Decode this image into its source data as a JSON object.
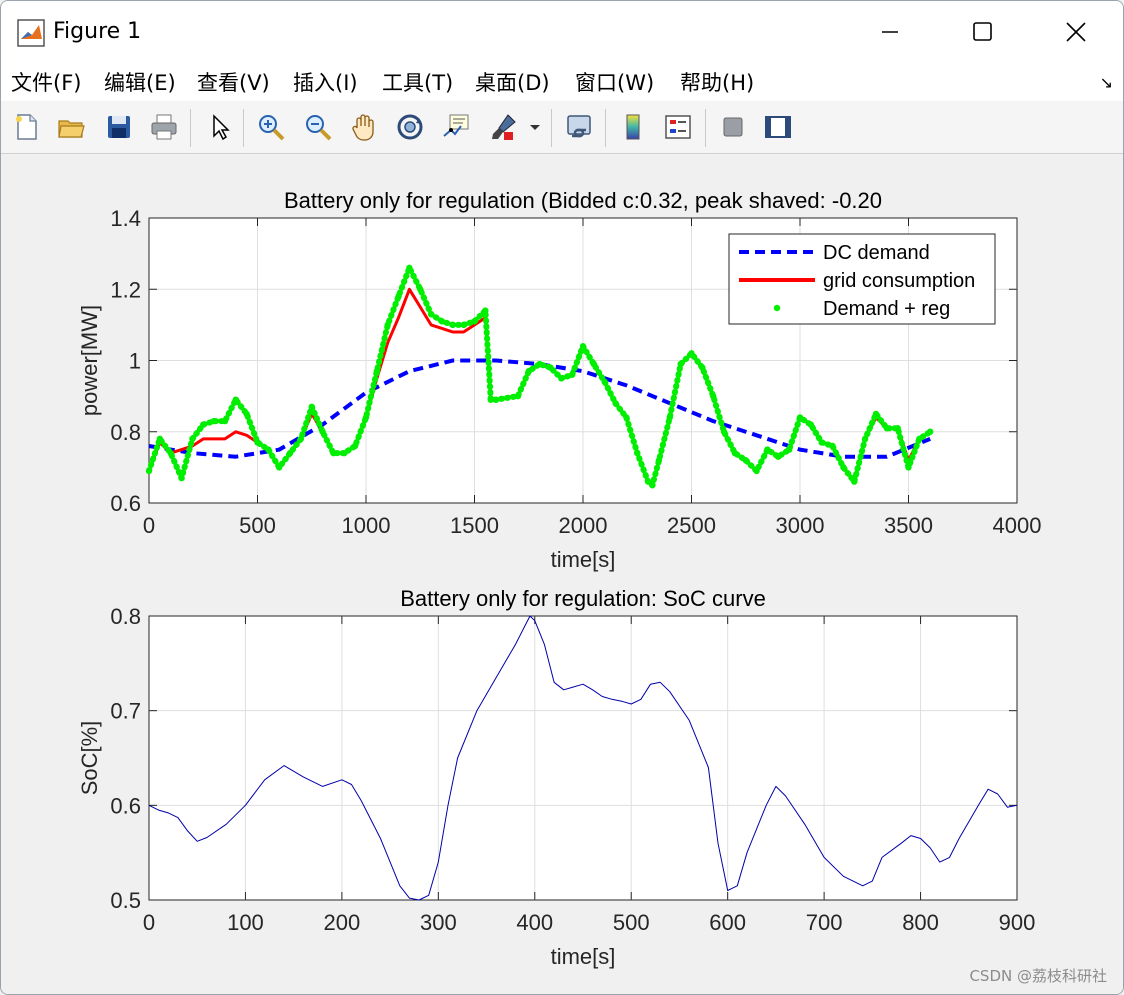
{
  "window": {
    "title": "Figure 1"
  },
  "menu": [
    {
      "id": "file",
      "label": "文件(F)"
    },
    {
      "id": "edit",
      "label": "编辑(E)"
    },
    {
      "id": "view",
      "label": "查看(V)"
    },
    {
      "id": "insert",
      "label": "插入(I)"
    },
    {
      "id": "tools",
      "label": "工具(T)"
    },
    {
      "id": "desktop",
      "label": "桌面(D)"
    },
    {
      "id": "window",
      "label": "窗口(W)"
    },
    {
      "id": "help",
      "label": "帮助(H)"
    }
  ],
  "toolbar_icons": [
    "new-file-icon",
    "open-folder-icon",
    "save-icon",
    "print-icon",
    "pointer-arrow-icon",
    "zoom-in-icon",
    "zoom-out-icon",
    "pan-hand-icon",
    "rotate-3d-icon",
    "data-cursor-icon",
    "brush-icon",
    "brush-dropdown-icon",
    "link-plot-icon",
    "colorbar-icon",
    "legend-icon",
    "hide-plot-tools-icon",
    "show-plot-tools-icon"
  ],
  "chart_data": [
    {
      "type": "line",
      "title": "Battery only for regulation (Bidded c:0.32, peak shaved: -0.20",
      "xlabel": "time[s]",
      "ylabel": "power[MW]",
      "xlim": [
        0,
        4000
      ],
      "ylim": [
        0.6,
        1.4
      ],
      "xticks": [
        0,
        500,
        1000,
        1500,
        2000,
        2500,
        3000,
        3500,
        4000
      ],
      "yticks": [
        0.6,
        0.8,
        1,
        1.2,
        1.4
      ],
      "xtick_labels": [
        "0",
        "500",
        "1000",
        "1500",
        "2000",
        "2500",
        "3000",
        "3500",
        "4000"
      ],
      "ytick_labels": [
        "0.6",
        "0.8",
        "1",
        "1.2",
        "1.4"
      ],
      "grid": true,
      "legend_position": "top-right",
      "series": [
        {
          "name": "DC demand",
          "style": "dashed",
          "color": "#0000ff",
          "x": [
            0,
            200,
            400,
            600,
            800,
            1000,
            1200,
            1400,
            1600,
            1800,
            2000,
            2200,
            2400,
            2600,
            2800,
            3000,
            3200,
            3400,
            3600
          ],
          "y": [
            0.76,
            0.74,
            0.73,
            0.75,
            0.82,
            0.91,
            0.97,
            1.0,
            1.0,
            0.99,
            0.97,
            0.93,
            0.88,
            0.83,
            0.79,
            0.75,
            0.73,
            0.73,
            0.78
          ]
        },
        {
          "name": "grid consumption",
          "style": "solid",
          "color": "#ff0000",
          "x": [
            0,
            50,
            100,
            150,
            200,
            250,
            300,
            350,
            400,
            450,
            500,
            550,
            600,
            650,
            700,
            750,
            800,
            850,
            900,
            950,
            1000,
            1050,
            1100,
            1150,
            1200,
            1250,
            1300,
            1350,
            1400,
            1450,
            1500,
            1550,
            1575,
            1600,
            1700,
            1750,
            1800,
            1850,
            1900,
            1950,
            2000,
            2050,
            2100,
            2150,
            2200,
            2250,
            2300,
            2320,
            2350,
            2400,
            2450,
            2500,
            2550,
            2600,
            2650,
            2700,
            2750,
            2800,
            2850,
            2900,
            2950,
            3000,
            3050,
            3100,
            3150,
            3200,
            3250,
            3300,
            3350,
            3400,
            3450,
            3500,
            3550,
            3600
          ],
          "y": [
            0.69,
            0.77,
            0.74,
            0.75,
            0.76,
            0.78,
            0.78,
            0.78,
            0.8,
            0.79,
            0.77,
            0.75,
            0.7,
            0.74,
            0.78,
            0.85,
            0.8,
            0.74,
            0.74,
            0.76,
            0.84,
            0.95,
            1.05,
            1.12,
            1.2,
            1.15,
            1.1,
            1.09,
            1.08,
            1.08,
            1.1,
            1.12,
            0.89,
            0.89,
            0.9,
            0.97,
            0.99,
            0.98,
            0.95,
            0.96,
            1.04,
            0.99,
            0.94,
            0.88,
            0.84,
            0.74,
            0.66,
            0.65,
            0.72,
            0.84,
            0.99,
            1.02,
            0.98,
            0.9,
            0.8,
            0.74,
            0.72,
            0.69,
            0.75,
            0.73,
            0.75,
            0.84,
            0.82,
            0.77,
            0.76,
            0.7,
            0.66,
            0.78,
            0.84,
            0.81,
            0.81,
            0.72,
            0.78,
            0.8
          ]
        },
        {
          "name": "Demand + reg",
          "style": "dots",
          "color": "#00ee00",
          "x": [
            0,
            50,
            100,
            150,
            200,
            250,
            300,
            350,
            400,
            450,
            500,
            550,
            600,
            650,
            700,
            750,
            800,
            850,
            900,
            950,
            1000,
            1050,
            1100,
            1150,
            1200,
            1250,
            1300,
            1350,
            1400,
            1450,
            1500,
            1550,
            1575,
            1600,
            1700,
            1750,
            1800,
            1850,
            1900,
            1950,
            2000,
            2050,
            2100,
            2150,
            2200,
            2250,
            2300,
            2320,
            2350,
            2400,
            2450,
            2500,
            2550,
            2600,
            2650,
            2700,
            2750,
            2800,
            2850,
            2900,
            2950,
            3000,
            3050,
            3100,
            3150,
            3200,
            3250,
            3300,
            3350,
            3400,
            3450,
            3500,
            3550,
            3600
          ],
          "y": [
            0.69,
            0.78,
            0.74,
            0.67,
            0.78,
            0.82,
            0.83,
            0.83,
            0.89,
            0.85,
            0.77,
            0.75,
            0.7,
            0.74,
            0.78,
            0.87,
            0.8,
            0.74,
            0.74,
            0.76,
            0.84,
            0.97,
            1.1,
            1.18,
            1.26,
            1.2,
            1.13,
            1.11,
            1.1,
            1.1,
            1.11,
            1.14,
            0.89,
            0.89,
            0.9,
            0.97,
            0.99,
            0.98,
            0.95,
            0.96,
            1.04,
            0.99,
            0.94,
            0.88,
            0.84,
            0.74,
            0.66,
            0.65,
            0.72,
            0.84,
            0.99,
            1.02,
            0.98,
            0.9,
            0.8,
            0.74,
            0.72,
            0.69,
            0.75,
            0.73,
            0.75,
            0.84,
            0.82,
            0.77,
            0.76,
            0.7,
            0.66,
            0.78,
            0.85,
            0.81,
            0.81,
            0.7,
            0.78,
            0.8
          ]
        }
      ]
    },
    {
      "type": "line",
      "title": "Battery only for regulation: SoC curve",
      "xlabel": "time[s]",
      "ylabel": "SoC[%]",
      "xlim": [
        0,
        900
      ],
      "ylim": [
        0.5,
        0.8
      ],
      "xticks": [
        0,
        100,
        200,
        300,
        400,
        500,
        600,
        700,
        800,
        900
      ],
      "yticks": [
        0.5,
        0.6,
        0.7,
        0.8
      ],
      "xtick_labels": [
        "0",
        "100",
        "200",
        "300",
        "400",
        "500",
        "600",
        "700",
        "800",
        "900"
      ],
      "ytick_labels": [
        "0.5",
        "0.6",
        "0.7",
        "0.8"
      ],
      "grid": true,
      "series": [
        {
          "style": "solid",
          "color": "#0000aa",
          "x": [
            0,
            10,
            20,
            30,
            40,
            50,
            60,
            80,
            100,
            120,
            140,
            160,
            180,
            200,
            210,
            220,
            240,
            260,
            270,
            280,
            290,
            300,
            310,
            320,
            340,
            360,
            380,
            390,
            395,
            400,
            410,
            420,
            430,
            440,
            450,
            460,
            470,
            480,
            490,
            500,
            510,
            520,
            530,
            540,
            560,
            580,
            590,
            600,
            610,
            620,
            640,
            650,
            660,
            680,
            700,
            720,
            740,
            750,
            760,
            780,
            790,
            800,
            810,
            820,
            830,
            840,
            860,
            870,
            880,
            890,
            900
          ],
          "y": [
            0.6,
            0.595,
            0.592,
            0.587,
            0.573,
            0.562,
            0.566,
            0.58,
            0.6,
            0.627,
            0.642,
            0.63,
            0.62,
            0.627,
            0.622,
            0.605,
            0.565,
            0.515,
            0.502,
            0.5,
            0.505,
            0.54,
            0.6,
            0.65,
            0.7,
            0.735,
            0.77,
            0.79,
            0.8,
            0.795,
            0.77,
            0.73,
            0.722,
            0.725,
            0.728,
            0.722,
            0.715,
            0.712,
            0.71,
            0.707,
            0.712,
            0.728,
            0.73,
            0.72,
            0.69,
            0.64,
            0.56,
            0.51,
            0.515,
            0.55,
            0.6,
            0.62,
            0.61,
            0.58,
            0.545,
            0.525,
            0.515,
            0.52,
            0.545,
            0.56,
            0.568,
            0.565,
            0.555,
            0.54,
            0.545,
            0.565,
            0.6,
            0.617,
            0.612,
            0.598,
            0.6
          ]
        }
      ]
    }
  ],
  "watermark": "CSDN @荔枝科研社"
}
